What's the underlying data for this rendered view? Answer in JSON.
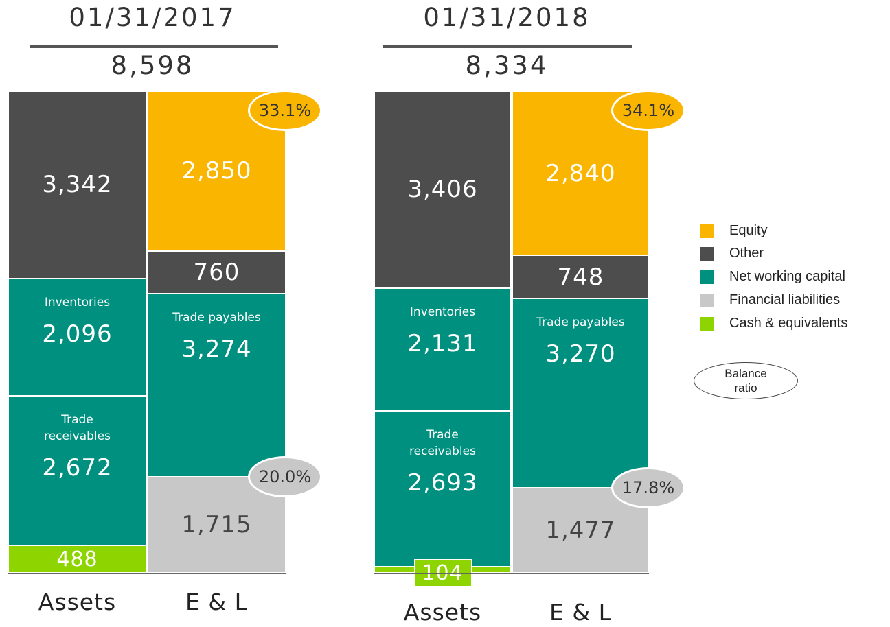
{
  "chart_data": [
    {
      "type": "balance-bar",
      "title": "01/31/2017",
      "total": 8598,
      "total_label": "8,598",
      "bars": [
        {
          "label": "Assets",
          "segments": [
            {
              "value": 3342,
              "value_label": "3,342",
              "color": "#4d4d4d"
            },
            {
              "label": "Inventories",
              "value": 2096,
              "value_label": "2,096",
              "color": "#009080"
            },
            {
              "label": "Trade receivables",
              "value": 2672,
              "value_label": "2,672",
              "color": "#009080"
            },
            {
              "value": 488,
              "value_label": "488",
              "color": "#8dd400"
            }
          ]
        },
        {
          "label": "E & L",
          "segments": [
            {
              "value": 2850,
              "value_label": "2,850",
              "color": "#f9b500",
              "ratio": 33.1,
              "ratio_label": "33.1%"
            },
            {
              "value": 760,
              "value_label": "760",
              "color": "#4d4d4d"
            },
            {
              "label": "Trade payables",
              "value": 3274,
              "value_label": "3,274",
              "color": "#009080"
            },
            {
              "value": 1715,
              "value_label": "1,715",
              "color": "#c8c8c8",
              "ratio": 20.0,
              "ratio_label": "20.0%"
            }
          ]
        }
      ]
    },
    {
      "type": "balance-bar",
      "title": "01/31/2018",
      "total": 8334,
      "total_label": "8,334",
      "bars": [
        {
          "label": "Assets",
          "segments": [
            {
              "value": 3406,
              "value_label": "3,406",
              "color": "#4d4d4d"
            },
            {
              "label": "Inventories",
              "value": 2131,
              "value_label": "2,131",
              "color": "#009080"
            },
            {
              "label": "Trade receivables",
              "value": 2693,
              "value_label": "2,693",
              "color": "#009080"
            },
            {
              "value": 104,
              "value_label": "104",
              "color": "#8dd400"
            }
          ]
        },
        {
          "label": "E & L",
          "segments": [
            {
              "value": 2840,
              "value_label": "2,840",
              "color": "#f9b500",
              "ratio": 34.1,
              "ratio_label": "34.1%"
            },
            {
              "value": 748,
              "value_label": "748",
              "color": "#4d4d4d"
            },
            {
              "label": "Trade payables",
              "value": 3270,
              "value_label": "3,270",
              "color": "#009080"
            },
            {
              "value": 1477,
              "value_label": "1,477",
              "color": "#c8c8c8",
              "ratio": 17.8,
              "ratio_label": "17.8%"
            }
          ]
        }
      ]
    }
  ],
  "legend": {
    "items": [
      {
        "name": "Equity",
        "color": "#f9b500"
      },
      {
        "name": "Other",
        "color": "#4d4d4d"
      },
      {
        "name": "Net working capital",
        "color": "#009080"
      },
      {
        "name": "Financial liabilities",
        "color": "#c8c8c8"
      },
      {
        "name": "Cash & equivalents",
        "color": "#8dd400"
      }
    ],
    "note": "Balance ratio"
  }
}
